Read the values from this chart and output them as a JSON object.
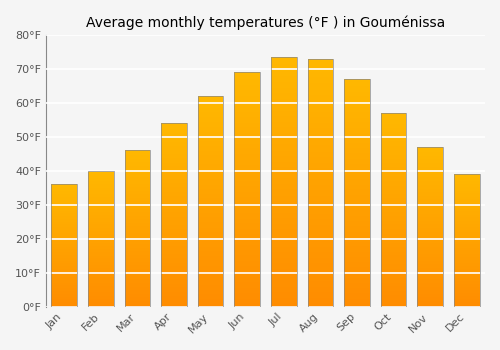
{
  "title": "Average monthly temperatures (°F ) in Gouménissa",
  "months": [
    "Jan",
    "Feb",
    "Mar",
    "Apr",
    "May",
    "Jun",
    "Jul",
    "Aug",
    "Sep",
    "Oct",
    "Nov",
    "Dec"
  ],
  "values": [
    36,
    40,
    46,
    54,
    62,
    69,
    73.5,
    73,
    67,
    57,
    47,
    39
  ],
  "bar_color_top": "#FFB800",
  "bar_color_bottom": "#FF8C00",
  "bar_edge_color": "#888888",
  "ylim": [
    0,
    80
  ],
  "yticks": [
    0,
    10,
    20,
    30,
    40,
    50,
    60,
    70,
    80
  ],
  "ytick_labels": [
    "0°F",
    "10°F",
    "20°F",
    "30°F",
    "40°F",
    "50°F",
    "60°F",
    "70°F",
    "80°F"
  ],
  "background_color": "#f5f5f5",
  "grid_color": "#ffffff",
  "title_fontsize": 10,
  "tick_fontsize": 8,
  "bar_width": 0.7
}
